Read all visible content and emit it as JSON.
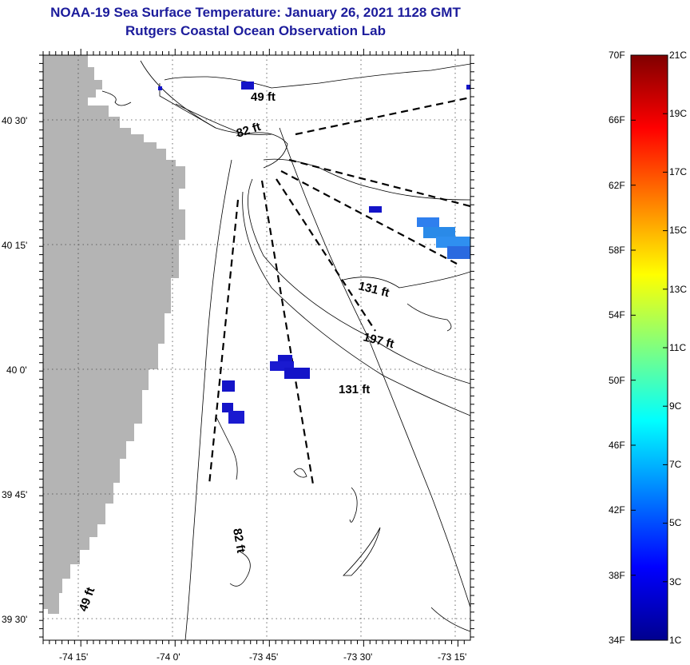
{
  "title": {
    "line1": "NOAA-19 Sea Surface Temperature:  January 26, 2021 1128 GMT",
    "line2": "Rutgers Coastal Ocean Observation Lab"
  },
  "map": {
    "lat_ticks": [
      {
        "label": "40 30'",
        "lat": 40.5
      },
      {
        "label": "40 15'",
        "lat": 40.25
      },
      {
        "label": "40 0'",
        "lat": 40.0
      },
      {
        "label": "39 45'",
        "lat": 39.75
      },
      {
        "label": "39 30'",
        "lat": 39.5
      }
    ],
    "lon_ticks": [
      {
        "label": "-74 15'",
        "lon": -74.25
      },
      {
        "label": "-74 0'",
        "lon": -74.0
      },
      {
        "label": "-73 45'",
        "lon": -73.75
      },
      {
        "label": "-73 30'",
        "lon": -73.5
      },
      {
        "label": "-73 15'",
        "lon": -73.25
      }
    ],
    "depth_labels": [
      "49 ft",
      "82 ft",
      "131 ft",
      "197 ft",
      "131 ft",
      "82 ft",
      "49 ft"
    ],
    "land_color": "#b4b4b4"
  },
  "colorbar": {
    "fahrenheit_labels": [
      "70F",
      "66F",
      "62F",
      "58F",
      "54F",
      "50F",
      "46F",
      "42F",
      "38F",
      "34F"
    ],
    "celsius_labels": [
      "21C",
      "19C",
      "17C",
      "15C",
      "13C",
      "11C",
      "9C",
      "7C",
      "5C",
      "3C",
      "1C"
    ],
    "temp_min_c": 1,
    "temp_max_c": 21
  }
}
